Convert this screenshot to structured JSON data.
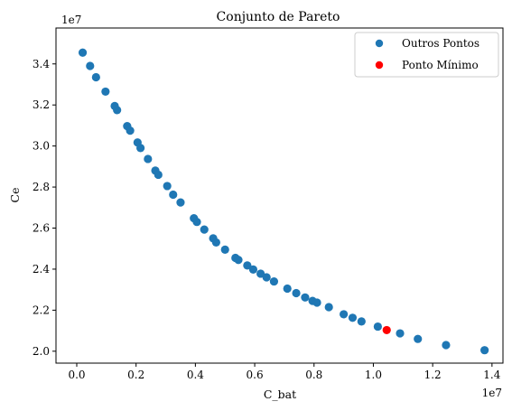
{
  "chart_data": {
    "type": "scatter",
    "title": "Conjunto de Pareto",
    "xlabel": "C_bat",
    "ylabel": "Ce",
    "x_offset_label": "1e7",
    "y_offset_label": "1e7",
    "xlim": [
      -0.07,
      1.437
    ],
    "ylim": [
      1.942,
      3.575
    ],
    "xticks": [
      0.0,
      0.2,
      0.4,
      0.6,
      0.8,
      1.0,
      1.2,
      1.4
    ],
    "yticks": [
      2.0,
      2.2,
      2.4,
      2.6,
      2.8,
      3.0,
      3.2,
      3.4
    ],
    "grid": false,
    "legend_position": "top-right",
    "colors": {
      "outros": "#1f77b4",
      "minimo": "#ff0000"
    },
    "series": [
      {
        "name": "Outros Pontos",
        "points": [
          [
            0.02,
            3.455
          ],
          [
            0.045,
            3.39
          ],
          [
            0.065,
            3.335
          ],
          [
            0.097,
            3.265
          ],
          [
            0.128,
            3.195
          ],
          [
            0.136,
            3.175
          ],
          [
            0.17,
            3.097
          ],
          [
            0.18,
            3.075
          ],
          [
            0.205,
            3.017
          ],
          [
            0.215,
            2.99
          ],
          [
            0.24,
            2.937
          ],
          [
            0.265,
            2.88
          ],
          [
            0.275,
            2.86
          ],
          [
            0.305,
            2.805
          ],
          [
            0.325,
            2.763
          ],
          [
            0.35,
            2.725
          ],
          [
            0.395,
            2.648
          ],
          [
            0.405,
            2.63
          ],
          [
            0.43,
            2.593
          ],
          [
            0.46,
            2.55
          ],
          [
            0.47,
            2.53
          ],
          [
            0.5,
            2.495
          ],
          [
            0.535,
            2.455
          ],
          [
            0.545,
            2.445
          ],
          [
            0.575,
            2.418
          ],
          [
            0.595,
            2.398
          ],
          [
            0.62,
            2.378
          ],
          [
            0.64,
            2.36
          ],
          [
            0.665,
            2.34
          ],
          [
            0.71,
            2.305
          ],
          [
            0.74,
            2.283
          ],
          [
            0.77,
            2.262
          ],
          [
            0.795,
            2.245
          ],
          [
            0.81,
            2.237
          ],
          [
            0.85,
            2.215
          ],
          [
            0.9,
            2.18
          ],
          [
            0.93,
            2.163
          ],
          [
            0.96,
            2.145
          ],
          [
            1.015,
            2.12
          ],
          [
            1.09,
            2.087
          ],
          [
            1.15,
            2.06
          ],
          [
            1.245,
            2.03
          ],
          [
            1.375,
            2.005
          ]
        ]
      },
      {
        "name": "Ponto Mínimo",
        "points": [
          [
            1.045,
            2.103
          ]
        ]
      }
    ]
  }
}
